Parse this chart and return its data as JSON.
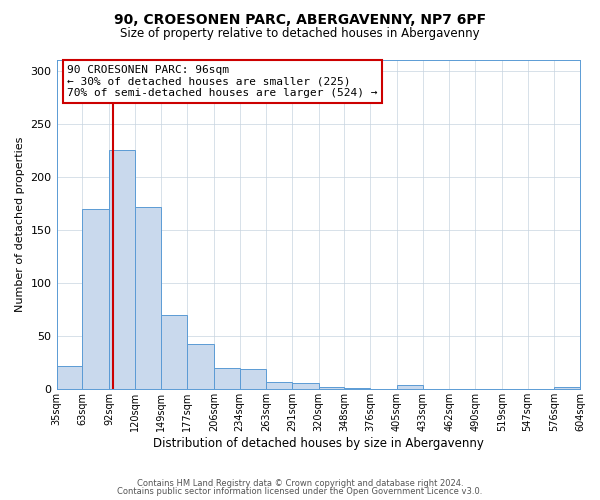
{
  "title": "90, CROESONEN PARC, ABERGAVENNY, NP7 6PF",
  "subtitle": "Size of property relative to detached houses in Abergavenny",
  "xlabel": "Distribution of detached houses by size in Abergavenny",
  "ylabel": "Number of detached properties",
  "footer_lines": [
    "Contains HM Land Registry data © Crown copyright and database right 2024.",
    "Contains public sector information licensed under the Open Government Licence v3.0."
  ],
  "bin_edges": [
    35,
    63,
    92,
    120,
    149,
    177,
    206,
    234,
    263,
    291,
    320,
    348,
    376,
    405,
    433,
    462,
    490,
    519,
    547,
    576,
    604
  ],
  "bin_labels": [
    "35sqm",
    "63sqm",
    "92sqm",
    "120sqm",
    "149sqm",
    "177sqm",
    "206sqm",
    "234sqm",
    "263sqm",
    "291sqm",
    "320sqm",
    "348sqm",
    "376sqm",
    "405sqm",
    "433sqm",
    "462sqm",
    "490sqm",
    "519sqm",
    "547sqm",
    "576sqm",
    "604sqm"
  ],
  "counts": [
    22,
    170,
    225,
    172,
    70,
    43,
    20,
    19,
    7,
    6,
    2,
    1,
    0,
    4,
    0,
    0,
    0,
    0,
    0,
    2
  ],
  "bar_color": "#c9d9ed",
  "bar_edge_color": "#5b9bd5",
  "reference_line_x": 96,
  "reference_line_color": "#cc0000",
  "annotation_line1": "90 CROESONEN PARC: 96sqm",
  "annotation_line2": "← 30% of detached houses are smaller (225)",
  "annotation_line3": "70% of semi-detached houses are larger (524) →",
  "ylim": [
    0,
    310
  ],
  "background_color": "#ffffff",
  "grid_color": "#c8d4e0"
}
